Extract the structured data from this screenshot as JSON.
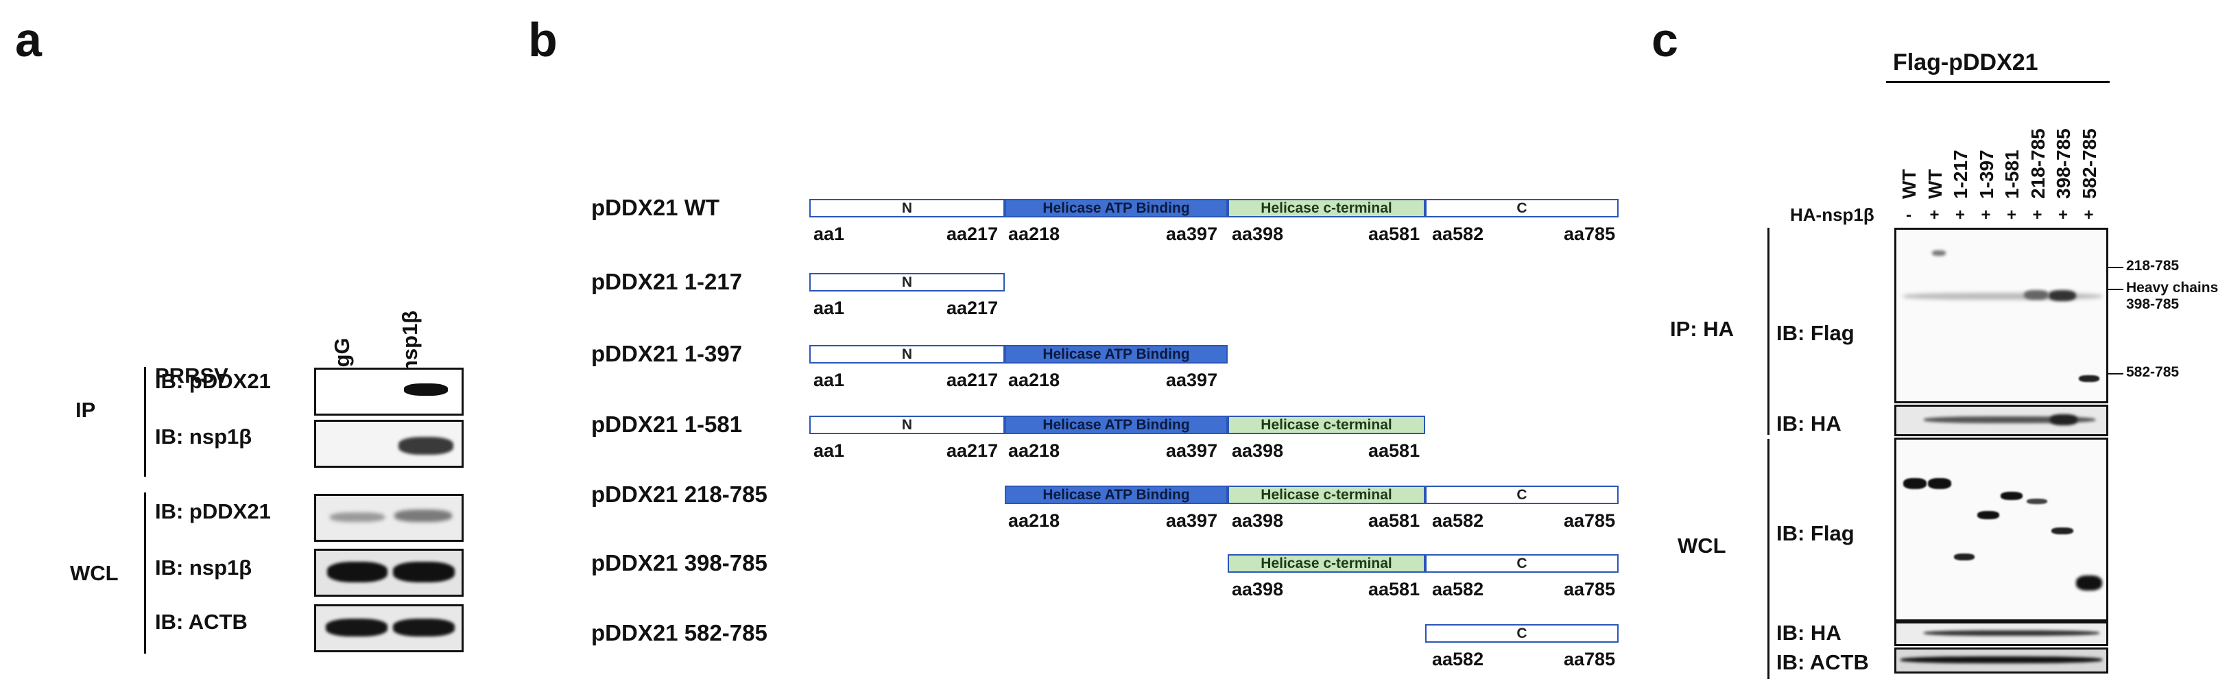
{
  "panel_a": {
    "letter": "a",
    "prrsv_label": "PRRSV",
    "lanes": [
      {
        "sign": "+",
        "label": "IgG"
      },
      {
        "sign": "+",
        "label": "nsp1β"
      }
    ],
    "ip_group": "IP",
    "wcl_group": "WCL",
    "blots": [
      {
        "label": "IB: pDDX21"
      },
      {
        "label": "IB: nsp1β"
      },
      {
        "label": "IB: pDDX21"
      },
      {
        "label": "IB: nsp1β"
      },
      {
        "label": "IB: ACTB"
      }
    ]
  },
  "panel_b": {
    "letter": "b",
    "constructs": [
      {
        "name": "pDDX21 WT",
        "segments": [
          {
            "kind": "n",
            "label": "N"
          },
          {
            "kind": "atp",
            "label": "Helicase ATP Binding"
          },
          {
            "kind": "cterm",
            "label": "Helicase c-terminal"
          },
          {
            "kind": "c",
            "label": "C"
          }
        ],
        "aa": [
          "aa1",
          "aa217",
          "aa218",
          "aa397",
          "aa398",
          "aa581",
          "aa582",
          "aa785"
        ]
      },
      {
        "name": "pDDX21 1-217",
        "segments": [
          {
            "kind": "n",
            "label": "N"
          }
        ],
        "aa": [
          "aa1",
          "aa217"
        ]
      },
      {
        "name": "pDDX21 1-397",
        "segments": [
          {
            "kind": "n",
            "label": "N"
          },
          {
            "kind": "atp",
            "label": "Helicase ATP Binding"
          }
        ],
        "aa": [
          "aa1",
          "aa217",
          "aa218",
          "aa397"
        ]
      },
      {
        "name": "pDDX21 1-581",
        "segments": [
          {
            "kind": "n",
            "label": "N"
          },
          {
            "kind": "atp",
            "label": "Helicase ATP Binding"
          },
          {
            "kind": "cterm",
            "label": "Helicase c-terminal"
          }
        ],
        "aa": [
          "aa1",
          "aa217",
          "aa218",
          "aa397",
          "aa398",
          "aa581"
        ]
      },
      {
        "name": "pDDX21 218-785",
        "segments": [
          {
            "kind": "atp",
            "label": "Helicase ATP Binding"
          },
          {
            "kind": "cterm",
            "label": "Helicase c-terminal"
          },
          {
            "kind": "c",
            "label": "C"
          }
        ],
        "aa": [
          "aa218",
          "aa397",
          "aa398",
          "aa581",
          "aa582",
          "aa785"
        ]
      },
      {
        "name": "pDDX21 398-785",
        "segments": [
          {
            "kind": "cterm",
            "label": "Helicase c-terminal"
          },
          {
            "kind": "c",
            "label": "C"
          }
        ],
        "aa": [
          "aa398",
          "aa581",
          "aa582",
          "aa785"
        ]
      },
      {
        "name": "pDDX21 582-785",
        "segments": [
          {
            "kind": "c",
            "label": "C"
          }
        ],
        "aa": [
          "aa582",
          "aa785"
        ]
      }
    ]
  },
  "panel_c": {
    "letter": "c",
    "header": "Flag-pDDX21",
    "lanes": [
      "WT",
      "WT",
      "1-217",
      "1-397",
      "1-581",
      "218-785",
      "398-785",
      "582-785"
    ],
    "ha_label": "HA-nsp1β",
    "ha_signs": [
      "-",
      "+",
      "+",
      "+",
      "+",
      "+",
      "+",
      "+"
    ],
    "ip_group": "IP: HA",
    "wcl_group": "WCL",
    "blots": [
      {
        "label": "IB: Flag"
      },
      {
        "label": "IB: HA"
      },
      {
        "label": "IB: Flag"
      },
      {
        "label": "IB: HA"
      },
      {
        "label": "IB: ACTB"
      }
    ],
    "annotations": [
      "218-785",
      "Heavy chains",
      "398-785",
      "582-785"
    ]
  }
}
